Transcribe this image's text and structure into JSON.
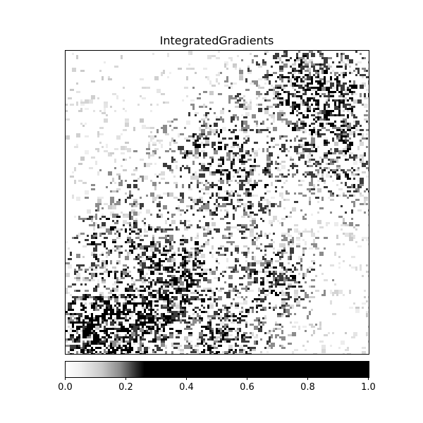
{
  "title": "IntegratedGradients",
  "heatmap": {
    "description_colormap": "white-to-black",
    "value_range": [
      0.0,
      1.0
    ],
    "pattern": "sparse speckled attribution; dense dark clusters in lower-left and lower-middle, scattered dark texture along diagonal bands and upper-right"
  },
  "colorbar": {
    "ticks": [
      "0.0",
      "0.2",
      "0.4",
      "0.6",
      "0.8",
      "1.0"
    ],
    "min": 0.0,
    "max": 1.0,
    "saturation_point": 0.25,
    "colors": {
      "low": "#ffffff",
      "high": "#000000"
    }
  }
}
